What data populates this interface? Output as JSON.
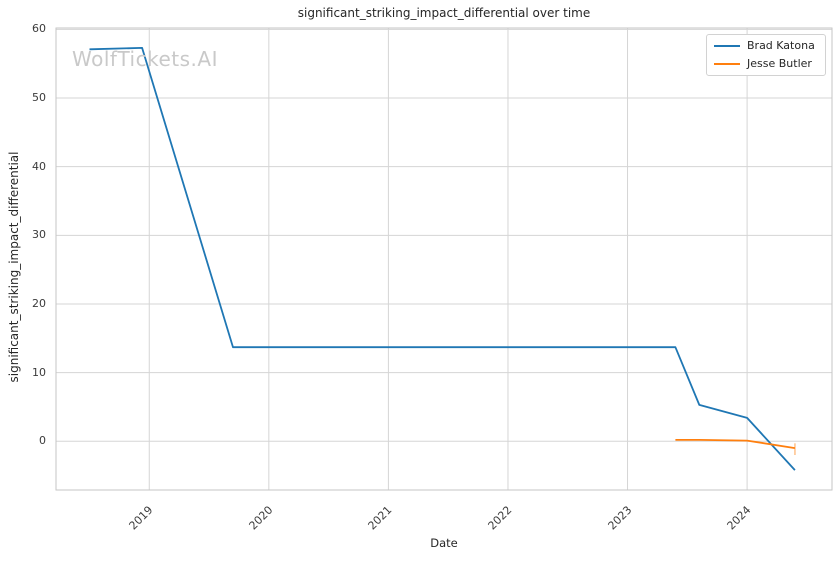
{
  "figure": {
    "watermark": "WolfTickets.AI"
  },
  "chart_data": {
    "type": "line",
    "title": "significant_striking_impact_differential over time",
    "xlabel": "Date",
    "ylabel": "significant_striking_impact_differential",
    "xlim": [
      2018.22,
      2024.71
    ],
    "ylim": [
      -7.1,
      60.2
    ],
    "x_ticks": [
      2019,
      2020,
      2021,
      2022,
      2023,
      2024
    ],
    "y_ticks": [
      0,
      10,
      20,
      30,
      40,
      50,
      60
    ],
    "grid": true,
    "legend_position": "upper right",
    "colors": {
      "grid": "#d5d5d5",
      "spine": "#c6c6c6",
      "text": "#262626",
      "tick_text": "#3b3b3b",
      "watermark": "#c9c9c9"
    },
    "series": [
      {
        "name": "Brad Katona",
        "color": "#1f77b4",
        "points": [
          [
            2018.5,
            57.1
          ],
          [
            2018.94,
            57.3
          ],
          [
            2019.7,
            13.7
          ],
          [
            2023.4,
            13.7
          ],
          [
            2023.6,
            5.3
          ],
          [
            2024.0,
            3.4
          ],
          [
            2024.4,
            -4.2
          ]
        ]
      },
      {
        "name": "Jesse Butler",
        "color": "#ff7f0e",
        "points": [
          [
            2023.4,
            0.2
          ],
          [
            2023.6,
            0.2
          ],
          [
            2024.0,
            0.1
          ],
          [
            2024.4,
            -1.0
          ]
        ],
        "end_cap": {
          "x": 2024.4,
          "y1": -0.3,
          "y2": -2.0
        }
      }
    ]
  }
}
